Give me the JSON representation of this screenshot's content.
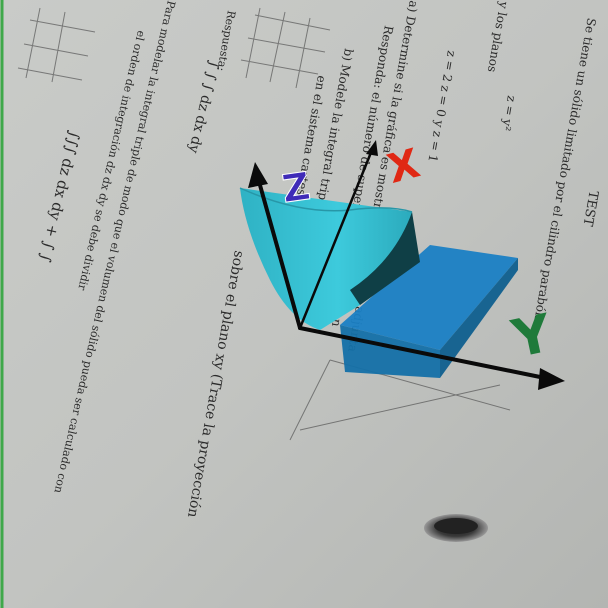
{
  "paper": {
    "lines": [
      "TEST",
      "Se tiene un sólido limitado por el cilindro parabólico",
      "y los planos",
      "z = y²",
      "z = 2 z = 0 y z = 1",
      "a) Determine si la gráfica es mostrada en la figura adjunta",
      "Responda: el número de superficies que lo limitan",
      "b) Modele la integral triple cuya base de",
      "en el sistema cartesiano adjunto)",
      "sobre el plano xy (Trace la proyección",
      "Respuesta:",
      "Para modelar la integral triple de modo que el volumen del sólido pueda ser calculado con",
      "el orden de integración dz dx dy se debe dividir",
      "∫ ∫ ∫ dz dx dy",
      "∫∫∫ dz dx dy + ∫ ∫"
    ]
  },
  "ar_overlay": {
    "axis_labels": {
      "x": "X",
      "y": "Y",
      "z": "Z"
    },
    "colors": {
      "surface_front": "#35c4d6",
      "surface_dark": "#0f3f46",
      "projection": "#1a7fc4",
      "x_label": "#e02814",
      "y_label": "#1f7a3a",
      "z_label": "#3f2bb8",
      "axes": "#0a0a0a"
    }
  }
}
